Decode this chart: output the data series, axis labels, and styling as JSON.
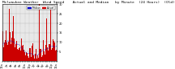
{
  "n_points": 1440,
  "seed": 42,
  "bar_color": "#cc0000",
  "median_color": "#0000cc",
  "bg_color": "#ffffff",
  "plot_bg_color": "#e8e8e8",
  "ylim": [
    0,
    30
  ],
  "ytick_values": [
    5,
    10,
    15,
    20,
    25,
    30
  ],
  "grid_color": "#bbbbbb",
  "title_fontsize": 3.2,
  "tick_fontsize": 2.5,
  "legend_fontsize": 2.2,
  "legend_actual_color": "#cc0000",
  "legend_median_color": "#0000cc",
  "title_line1": "Milwaukee Weather  Wind Speed    Actual and Median   by Minute",
  "title_line2": "(24 Hours)  (Old)"
}
